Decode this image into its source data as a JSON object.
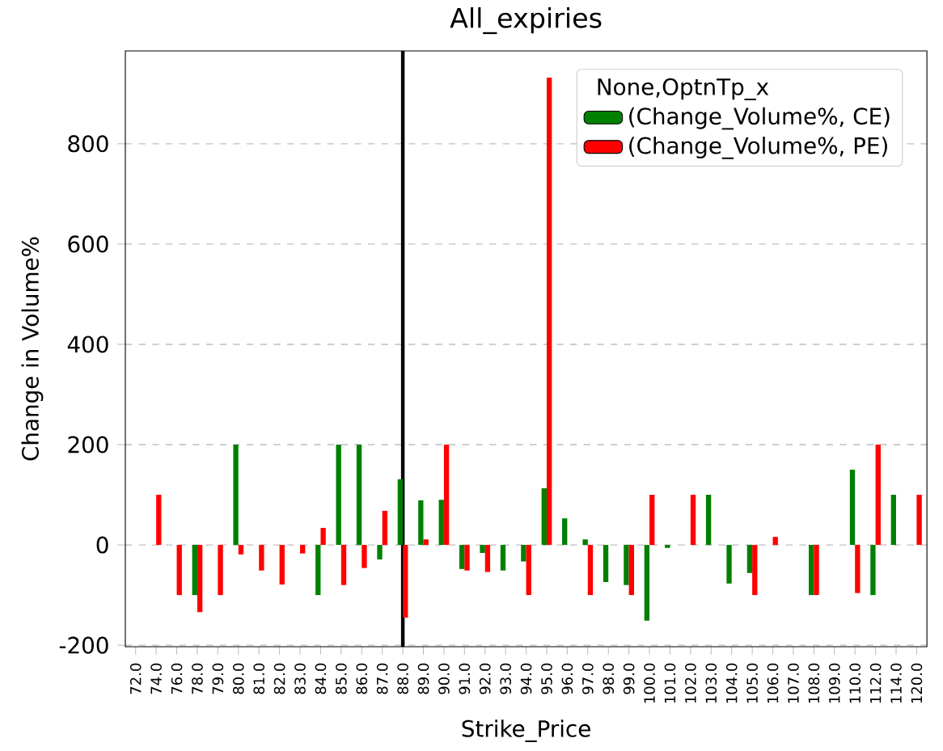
{
  "chart_data": {
    "type": "bar",
    "title": "All_expiries",
    "xlabel": "Strike_Price",
    "ylabel": "Change in Volume%",
    "legend_title": "None,OptnTp_x",
    "categories": [
      "72.0",
      "74.0",
      "76.0",
      "78.0",
      "79.0",
      "80.0",
      "81.0",
      "82.0",
      "83.0",
      "84.0",
      "85.0",
      "86.0",
      "87.0",
      "88.0",
      "89.0",
      "90.0",
      "91.0",
      "92.0",
      "93.0",
      "94.0",
      "95.0",
      "96.0",
      "97.0",
      "98.0",
      "99.0",
      "100.0",
      "101.0",
      "102.0",
      "103.0",
      "104.0",
      "105.0",
      "106.0",
      "107.0",
      "108.0",
      "109.0",
      "110.0",
      "112.0",
      "114.0",
      "120.0"
    ],
    "series": [
      {
        "name": "(Change_Volume%, CE)",
        "color": "#008000",
        "values": [
          null,
          null,
          null,
          -100,
          null,
          200,
          null,
          null,
          null,
          -100,
          200,
          200,
          -29,
          131,
          89,
          90,
          -48,
          -16,
          -51,
          -33,
          113,
          53,
          11,
          -74,
          -80,
          -151,
          -6,
          null,
          100,
          -77,
          -56,
          null,
          null,
          -100,
          null,
          150,
          -100,
          100,
          null
        ]
      },
      {
        "name": "(Change_Volume%, PE)",
        "color": "#ff0000",
        "values": [
          null,
          100,
          -100,
          -134,
          -100,
          -19,
          -51,
          -79,
          -17,
          34,
          -80,
          -46,
          68,
          -145,
          11,
          200,
          -51,
          -54,
          null,
          -100,
          932,
          null,
          -100,
          null,
          -100,
          100,
          null,
          100,
          null,
          null,
          -100,
          16,
          null,
          -100,
          null,
          -96,
          200,
          null,
          100
        ]
      }
    ],
    "ylim": [
      -203,
      985
    ],
    "yticks": [
      -200,
      0,
      200,
      400,
      600,
      800
    ],
    "grid": "y",
    "legend": "top right",
    "ref_lines": [
      {
        "axis": "x",
        "value": "88.0",
        "color": "#000000"
      }
    ]
  }
}
